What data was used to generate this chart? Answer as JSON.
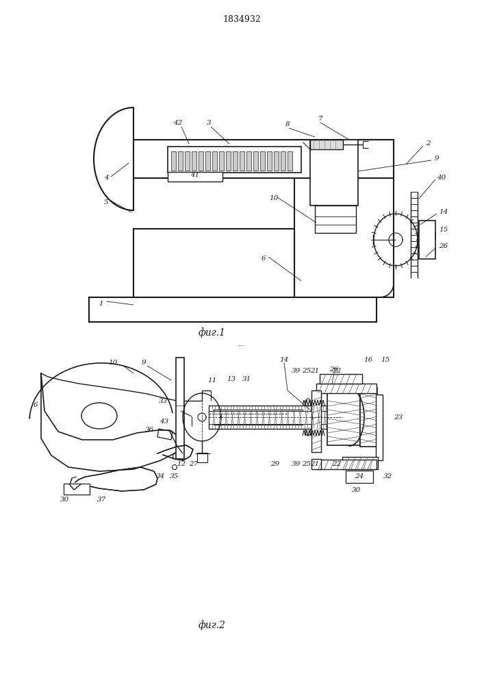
{
  "title": "1834932",
  "fig1_label": "фиг.1",
  "fig2_label": "фиг.2",
  "bg_color": "#ffffff",
  "line_color": "#1a1a1a",
  "lw": 1.0
}
